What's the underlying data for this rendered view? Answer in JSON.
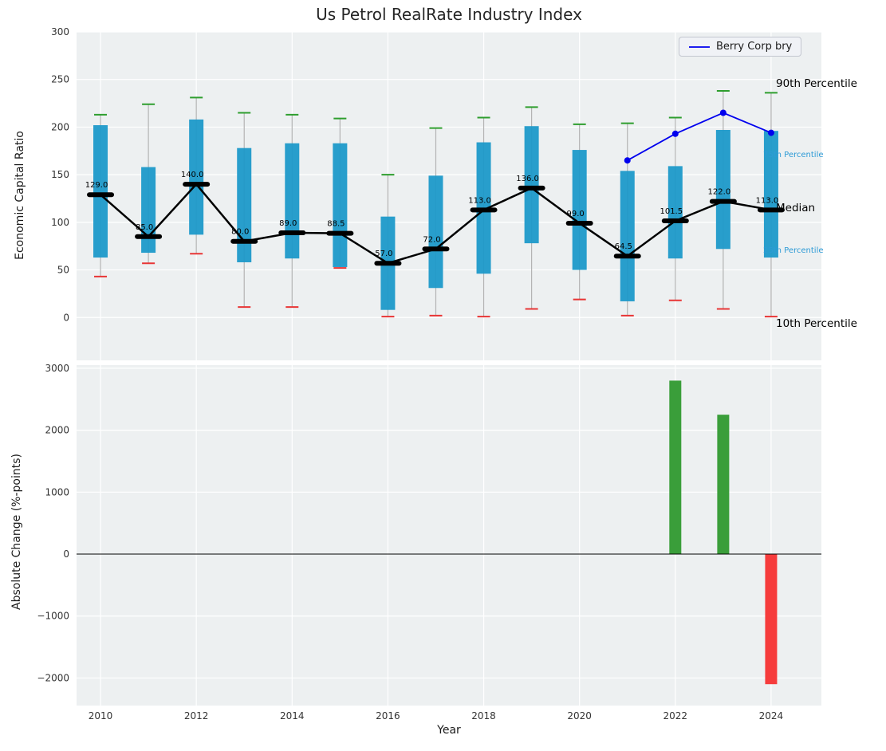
{
  "figure": {
    "title": "Us Petrol RealRate Industry Index",
    "xlabel": "Year"
  },
  "chart_data": [
    {
      "type": "boxplot",
      "panel": "top",
      "title": "Us Petrol RealRate Industry Index",
      "ylabel": "Economic Capital Ratio",
      "ylim": [
        -45,
        300
      ],
      "yticks": [
        0,
        50,
        100,
        150,
        200,
        250,
        300
      ],
      "grid": true,
      "years": [
        2010,
        2011,
        2012,
        2013,
        2014,
        2015,
        2016,
        2017,
        2018,
        2019,
        2020,
        2021,
        2022,
        2023,
        2024
      ],
      "series": {
        "p90": [
          213,
          224,
          231,
          215,
          213,
          209,
          150,
          199,
          210,
          221,
          203,
          204,
          210,
          238,
          236
        ],
        "p75": [
          202,
          158,
          208,
          178,
          183,
          183,
          106,
          149,
          184,
          201,
          176,
          154,
          159,
          197,
          196
        ],
        "median": [
          129,
          85,
          140,
          80,
          89,
          88.5,
          57,
          72,
          113,
          136,
          99,
          64.5,
          101.5,
          122,
          113
        ],
        "p25": [
          63,
          68,
          87,
          58,
          62,
          53,
          8,
          31,
          46,
          78,
          50,
          17,
          62,
          72,
          63
        ],
        "p10": [
          43,
          57,
          67,
          11,
          11,
          52,
          1,
          2,
          1,
          9,
          19,
          2,
          18,
          9,
          1
        ]
      },
      "median_labels": [
        "129.0",
        "85.0",
        "140.0",
        "80.0",
        "89.0",
        "88.5",
        "57.0",
        "72.0",
        "113.0",
        "136.0",
        "99.0",
        "64.5",
        "101.5",
        "122.0",
        "113.0"
      ],
      "overlay_line": {
        "name": "Berry Corp bry",
        "x": [
          2021,
          2022,
          2023,
          2024
        ],
        "values": [
          165,
          193,
          215,
          194
        ],
        "color": "#0000ee"
      },
      "legend": {
        "label": "Berry Corp bry",
        "position": "upper right"
      },
      "annotations": [
        {
          "label": "90th Percentile",
          "value": 244,
          "color": "#000000",
          "size": "large"
        },
        {
          "label": "75th Percentile",
          "value": 170,
          "color": "#2e9bd6",
          "size": "small"
        },
        {
          "label": "Median",
          "value": 113,
          "color": "#000000",
          "size": "large"
        },
        {
          "label": "25th Percentile",
          "value": 70,
          "color": "#2e9bd6",
          "size": "small"
        },
        {
          "label": "10th Percentile",
          "value": -8,
          "color": "#000000",
          "size": "large"
        }
      ],
      "colors": {
        "box": "#1d99c9",
        "whisker": "#b3b3b3",
        "cap_top": "#2e9e2e",
        "cap_bottom": "#e83535",
        "median": "#000000"
      }
    },
    {
      "type": "bar",
      "panel": "bottom",
      "ylabel": "Absolute Change (%-points)",
      "xlabel": "Year",
      "ylim": [
        -2445,
        3050
      ],
      "yticks": [
        -2000,
        -1000,
        0,
        1000,
        2000,
        3000
      ],
      "xticks": [
        2010,
        2012,
        2014,
        2016,
        2018,
        2020,
        2022,
        2024
      ],
      "grid": true,
      "zero_line": true,
      "bars": [
        {
          "year": 2022,
          "value": 2800,
          "color": "#3a9e3a"
        },
        {
          "year": 2023,
          "value": 2250,
          "color": "#3a9e3a"
        },
        {
          "year": 2024,
          "value": -2100,
          "color": "#f63c3c"
        }
      ],
      "colors": {
        "positive": "#3a9e3a",
        "negative": "#f63c3c"
      }
    }
  ]
}
